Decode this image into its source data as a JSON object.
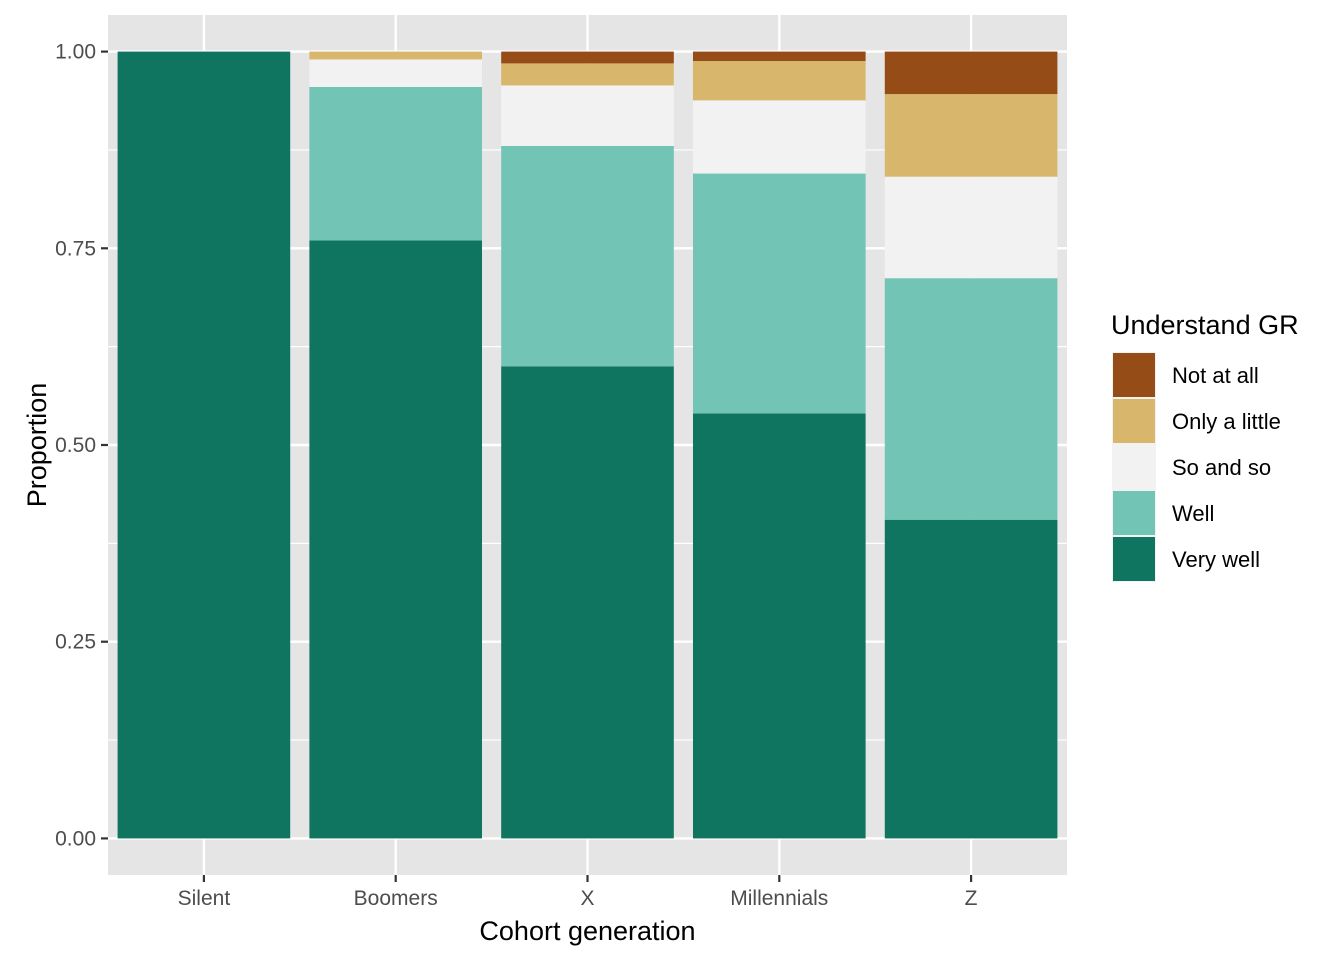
{
  "chart_data": {
    "type": "bar",
    "stacked": true,
    "categories": [
      "Silent",
      "Boomers",
      "X",
      "Millennials",
      "Z"
    ],
    "series": [
      {
        "name": "Very well",
        "color": "#0f7560",
        "values": [
          1.0,
          0.76,
          0.6,
          0.54,
          0.405
        ]
      },
      {
        "name": "Well",
        "color": "#72c4b4",
        "values": [
          0.0,
          0.195,
          0.28,
          0.305,
          0.307
        ]
      },
      {
        "name": "So and so",
        "color": "#f2f2f2",
        "values": [
          0.0,
          0.035,
          0.077,
          0.093,
          0.129
        ]
      },
      {
        "name": "Only a little",
        "color": "#d8b76c",
        "values": [
          0.0,
          0.01,
          0.028,
          0.05,
          0.105
        ]
      },
      {
        "name": "Not at all",
        "color": "#964c17",
        "values": [
          0.0,
          0.0,
          0.015,
          0.012,
          0.054
        ]
      }
    ],
    "xlabel": "Cohort generation",
    "ylabel": "Proportion",
    "ylim": [
      -0.0465,
      1.0465
    ],
    "yticks": [
      0.0,
      0.25,
      0.5,
      0.75,
      1.0
    ],
    "ytick_labels": [
      "0.00",
      "0.25",
      "0.50",
      "0.75",
      "1.00"
    ],
    "grid": true,
    "legend": {
      "title": "Understand GR",
      "position": "right",
      "entries": [
        "Not at all",
        "Only a little",
        "So and so",
        "Well",
        "Very well"
      ]
    },
    "panel_background": "#e5e5e5",
    "grid_color": "#ffffff"
  }
}
